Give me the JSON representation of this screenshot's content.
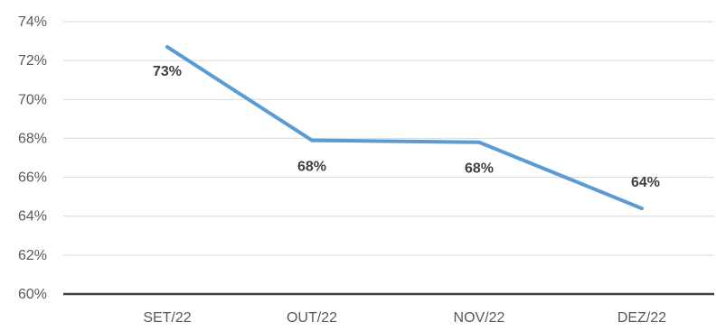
{
  "chart_data": {
    "type": "line",
    "title": "",
    "xlabel": "",
    "ylabel": "",
    "categories": [
      "SET/22",
      "OUT/22",
      "NOV/22",
      "DEZ/22"
    ],
    "series": [
      {
        "values": [
          72.7,
          67.9,
          67.8,
          64.4
        ],
        "data_labels": [
          "73%",
          "68%",
          "68%",
          "64%"
        ]
      }
    ],
    "ylim": [
      60,
      74
    ],
    "y_ticks": [
      60,
      62,
      64,
      66,
      68,
      70,
      72,
      74
    ],
    "y_tick_labels": [
      "60%",
      "62%",
      "64%",
      "66%",
      "68%",
      "70%",
      "72%",
      "74%"
    ],
    "grid": true,
    "legend": "none",
    "colors": {
      "line": "#5b9bd5",
      "grid": "#d9d9d9",
      "baseline": "#404040",
      "tick_text": "#595959",
      "data_label_text": "#404040"
    }
  }
}
